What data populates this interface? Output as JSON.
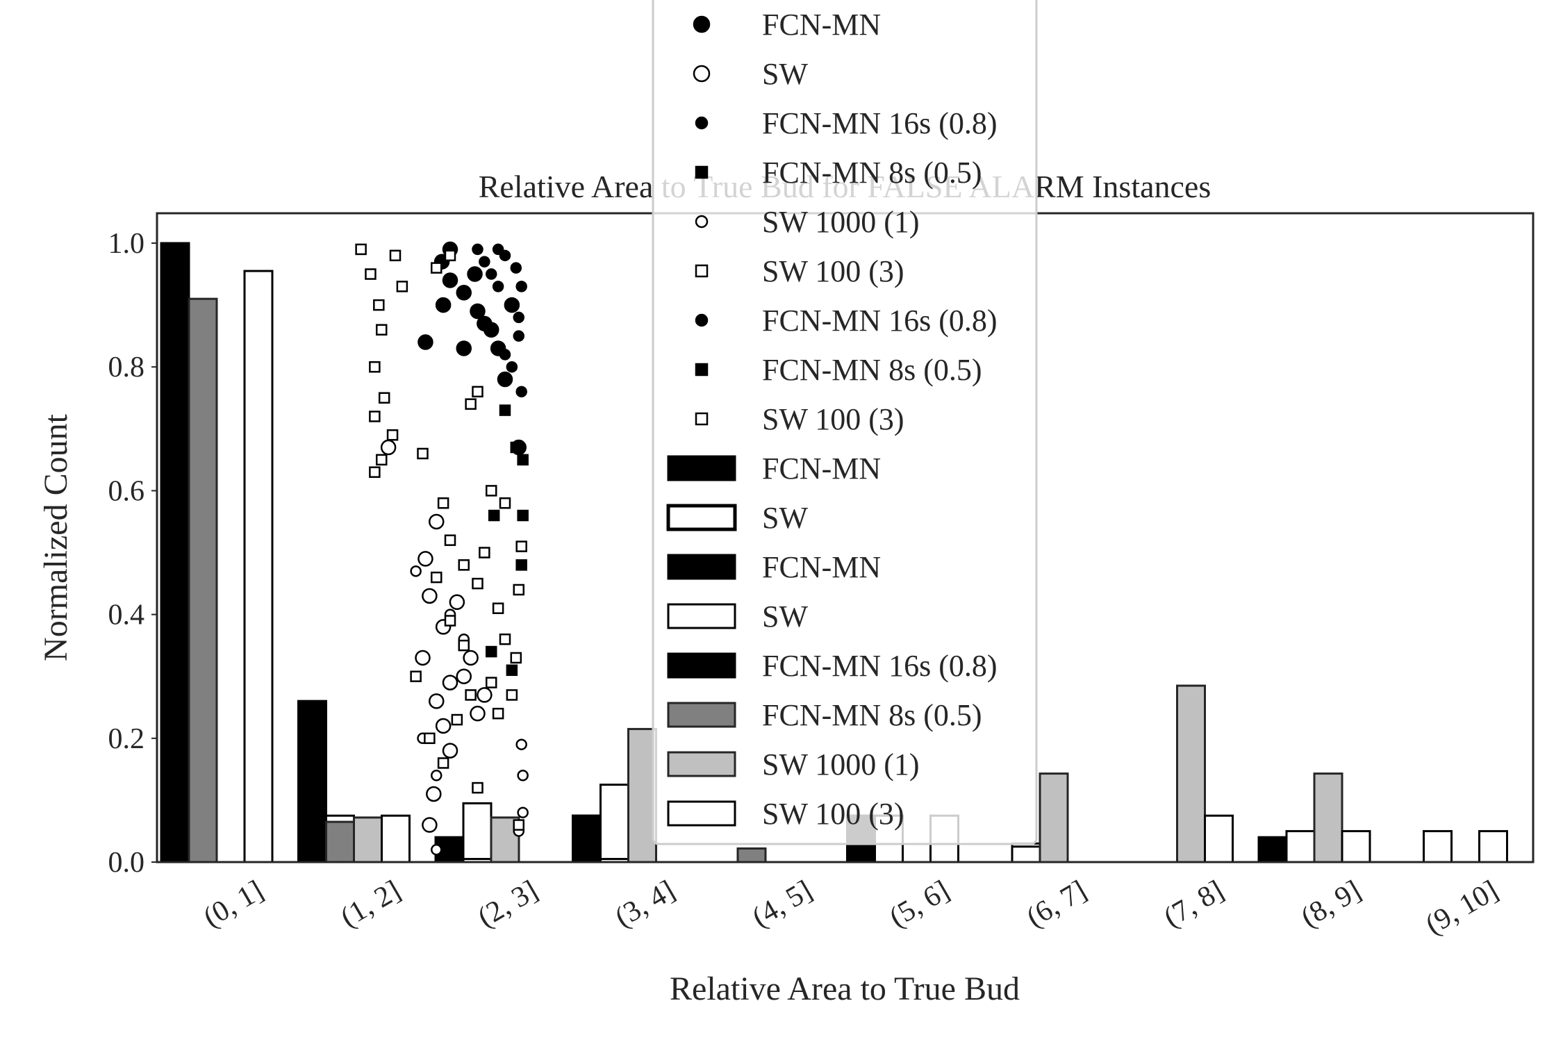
{
  "chart_data": {
    "type": "bar",
    "title": "Relative Area to True Bud for FALSE ALARM Instances",
    "xlabel": "Relative Area to True Bud",
    "ylabel": "Normalized Count",
    "ylim": [
      0,
      1.05
    ],
    "yticks": [
      "0.0",
      "0.2",
      "0.4",
      "0.6",
      "0.8",
      "1.0"
    ],
    "categories": [
      "(0, 1]",
      "(1, 2]",
      "(2, 3]",
      "(3, 4]",
      "(4, 5]",
      "(5, 6]",
      "(6, 7]",
      "(7, 8]",
      "(8, 9]",
      "(9, 10]"
    ],
    "grid": false,
    "legend_position": "top-center",
    "bar_series": [
      {
        "name": "FCN-MN",
        "fill": "#000000",
        "edge": "#000000",
        "values": [
          1.0,
          0.26,
          0.04,
          0.075,
          0.0,
          0.075,
          0.0,
          0.0,
          0.04,
          0.0
        ]
      },
      {
        "name": "SW",
        "fill": "#ffffff",
        "edge": "#000000",
        "values": [
          0.62,
          0.035,
          0.095,
          0.125,
          0.005,
          0.075,
          0.03,
          0.0,
          0.05,
          0.05
        ]
      },
      {
        "name": "FCN-MN",
        "fill": "#000000",
        "edge": "#000000",
        "values": [
          1.0,
          0.26,
          0.04,
          0.075,
          0.0,
          0.075,
          0.0,
          0.0,
          0.04,
          0.0
        ]
      },
      {
        "name": "SW",
        "fill": "#ffffff",
        "edge": "#000000",
        "values": [
          0.1,
          0.075,
          0.005,
          0.005,
          0.0,
          0.075,
          0.025,
          0.0,
          0.0,
          0.0
        ]
      },
      {
        "name": "FCN-MN 16s (0.8)",
        "fill": "#000000",
        "edge": "#000000",
        "values": [
          1.0,
          0.26,
          0.04,
          0.075,
          0.0,
          0.075,
          0.0,
          0.0,
          0.04,
          0.0
        ]
      },
      {
        "name": "FCN-MN 8s (0.5)",
        "fill": "#808080",
        "edge": "#262626",
        "values": [
          0.91,
          0.065,
          0.0,
          0.0,
          0.022,
          0.0,
          0.0,
          0.0,
          0.0,
          0.0
        ]
      },
      {
        "name": "SW 1000 (1)",
        "fill": "#c0c0c0",
        "edge": "#262626",
        "values": [
          0.0,
          0.072,
          0.072,
          0.215,
          0.0,
          0.0,
          0.143,
          0.285,
          0.143,
          0.0
        ]
      },
      {
        "name": "SW 100 (3)",
        "fill": "#ffffff",
        "edge": "#000000",
        "values": [
          0.955,
          0.075,
          0.0,
          0.0,
          0.0,
          0.075,
          0.0,
          0.075,
          0.05,
          0.05
        ]
      }
    ],
    "scatter_series": [
      {
        "name": "FCN-MN",
        "marker": "circle",
        "fill": "#000000",
        "size": "large",
        "points": [
          [
            2.04,
            0.97
          ],
          [
            2.1,
            0.94
          ],
          [
            2.2,
            0.92
          ],
          [
            2.3,
            0.89
          ],
          [
            2.35,
            0.87
          ],
          [
            2.45,
            0.83
          ],
          [
            1.92,
            0.84
          ],
          [
            2.05,
            0.9
          ],
          [
            2.5,
            0.78
          ],
          [
            2.28,
            0.95
          ],
          [
            2.4,
            0.86
          ],
          [
            2.2,
            0.83
          ],
          [
            2.55,
            0.9
          ],
          [
            2.1,
            0.99
          ],
          [
            2.6,
            0.67
          ]
        ]
      },
      {
        "name": "SW",
        "marker": "circle",
        "fill": "#ffffff",
        "size": "large",
        "points": [
          [
            2.0,
            0.55
          ],
          [
            1.95,
            0.43
          ],
          [
            2.05,
            0.38
          ],
          [
            2.1,
            0.29
          ],
          [
            2.0,
            0.26
          ],
          [
            2.2,
            0.3
          ],
          [
            2.25,
            0.33
          ],
          [
            1.9,
            0.33
          ],
          [
            2.3,
            0.24
          ],
          [
            1.98,
            0.11
          ],
          [
            2.05,
            0.22
          ],
          [
            2.15,
            0.42
          ],
          [
            1.65,
            0.67
          ],
          [
            1.95,
            0.06
          ],
          [
            2.1,
            0.18
          ],
          [
            2.35,
            0.27
          ],
          [
            1.92,
            0.49
          ]
        ]
      },
      {
        "name": "FCN-MN 16s (0.8)",
        "marker": "circle",
        "fill": "#000000",
        "size": "small",
        "points": [
          [
            2.3,
            0.99
          ],
          [
            2.35,
            0.97
          ],
          [
            2.4,
            0.95
          ],
          [
            2.45,
            0.93
          ],
          [
            2.5,
            0.98
          ],
          [
            2.55,
            0.9
          ],
          [
            2.6,
            0.85
          ],
          [
            2.55,
            0.8
          ],
          [
            2.62,
            0.76
          ],
          [
            2.58,
            0.96
          ],
          [
            2.6,
            0.88
          ],
          [
            2.5,
            0.82
          ],
          [
            2.45,
            0.99
          ],
          [
            2.62,
            0.93
          ]
        ]
      },
      {
        "name": "FCN-MN 8s (0.5)",
        "marker": "square",
        "fill": "#000000",
        "size": "small",
        "points": [
          [
            2.5,
            0.73
          ],
          [
            2.58,
            0.67
          ],
          [
            2.63,
            0.65
          ],
          [
            2.63,
            0.56
          ],
          [
            2.42,
            0.56
          ],
          [
            2.62,
            0.48
          ],
          [
            2.55,
            0.31
          ],
          [
            2.4,
            0.34
          ]
        ]
      },
      {
        "name": "SW 1000 (1)",
        "marker": "circle",
        "fill": "#ffffff",
        "size": "small",
        "points": [
          [
            1.85,
            0.47
          ],
          [
            1.9,
            0.2
          ],
          [
            2.0,
            0.02
          ],
          [
            2.0,
            0.14
          ],
          [
            2.1,
            0.4
          ],
          [
            2.2,
            0.36
          ],
          [
            2.3,
            0.12
          ],
          [
            2.63,
            0.14
          ],
          [
            2.63,
            0.08
          ],
          [
            2.62,
            0.19
          ],
          [
            2.6,
            0.05
          ]
        ]
      },
      {
        "name": "SW 100 (3)",
        "marker": "square",
        "fill": "#ffffff",
        "size": "small",
        "points": [
          [
            1.52,
            0.95
          ],
          [
            1.58,
            0.9
          ],
          [
            1.6,
            0.86
          ],
          [
            1.55,
            0.8
          ],
          [
            1.62,
            0.75
          ],
          [
            1.55,
            0.72
          ],
          [
            1.68,
            0.69
          ],
          [
            1.6,
            0.65
          ],
          [
            1.55,
            0.63
          ],
          [
            1.7,
            0.98
          ],
          [
            1.45,
            0.99
          ],
          [
            1.9,
            0.66
          ],
          [
            2.05,
            0.58
          ],
          [
            2.1,
            0.52
          ],
          [
            2.0,
            0.46
          ],
          [
            2.2,
            0.48
          ],
          [
            2.3,
            0.45
          ],
          [
            2.5,
            0.58
          ],
          [
            2.4,
            0.6
          ],
          [
            2.25,
            0.74
          ],
          [
            2.3,
            0.76
          ],
          [
            2.45,
            0.41
          ],
          [
            2.5,
            0.36
          ],
          [
            2.6,
            0.44
          ],
          [
            2.55,
            0.27
          ],
          [
            2.1,
            0.39
          ],
          [
            2.2,
            0.35
          ],
          [
            2.4,
            0.29
          ],
          [
            1.95,
            0.2
          ],
          [
            2.05,
            0.16
          ],
          [
            2.15,
            0.23
          ],
          [
            2.3,
            0.12
          ],
          [
            2.58,
            0.33
          ],
          [
            2.35,
            0.5
          ],
          [
            2.62,
            0.51
          ],
          [
            1.85,
            0.3
          ],
          [
            2.25,
            0.27
          ],
          [
            2.45,
            0.24
          ],
          [
            2.6,
            0.06
          ],
          [
            1.75,
            0.93
          ],
          [
            2.0,
            0.96
          ],
          [
            2.1,
            0.98
          ]
        ]
      },
      {
        "name": "FCN-MN 16s (0.8)",
        "marker": "circle",
        "fill": "#000000",
        "size": "small",
        "points": []
      },
      {
        "name": "FCN-MN 8s (0.5)",
        "marker": "square",
        "fill": "#000000",
        "size": "small",
        "points": []
      },
      {
        "name": "SW 100 (3)",
        "marker": "square",
        "fill": "#ffffff",
        "size": "small",
        "points": []
      }
    ],
    "legend": [
      {
        "label": "FCN-MN",
        "kind": "marker",
        "marker": "circle",
        "fill": "#000000",
        "size": "large"
      },
      {
        "label": "SW",
        "kind": "marker",
        "marker": "circle",
        "fill": "#ffffff",
        "size": "large"
      },
      {
        "label": "FCN-MN 16s (0.8)",
        "kind": "marker",
        "marker": "circle",
        "fill": "#000000",
        "size": "small"
      },
      {
        "label": "FCN-MN 8s (0.5)",
        "kind": "marker",
        "marker": "square",
        "fill": "#000000",
        "size": "small"
      },
      {
        "label": "SW 1000 (1)",
        "kind": "marker",
        "marker": "circle",
        "fill": "#ffffff",
        "size": "small"
      },
      {
        "label": "SW 100 (3)",
        "kind": "marker",
        "marker": "square",
        "fill": "#ffffff",
        "size": "small"
      },
      {
        "label": "FCN-MN 16s (0.8)",
        "kind": "marker",
        "marker": "circle",
        "fill": "#000000",
        "size": "small"
      },
      {
        "label": "FCN-MN 8s (0.5)",
        "kind": "marker",
        "marker": "square",
        "fill": "#000000",
        "size": "small"
      },
      {
        "label": "SW 100 (3)",
        "kind": "marker",
        "marker": "square",
        "fill": "#ffffff",
        "size": "small"
      },
      {
        "label": "FCN-MN",
        "kind": "patch",
        "fill": "#000000",
        "edge": "#000000"
      },
      {
        "label": "SW",
        "kind": "patch",
        "fill": "#ffffff",
        "edge": "#000000",
        "heavy": true
      },
      {
        "label": "FCN-MN",
        "kind": "patch",
        "fill": "#000000",
        "edge": "#000000"
      },
      {
        "label": "SW",
        "kind": "patch",
        "fill": "#ffffff",
        "edge": "#000000"
      },
      {
        "label": "FCN-MN 16s (0.8)",
        "kind": "patch",
        "fill": "#000000",
        "edge": "#000000"
      },
      {
        "label": "FCN-MN 8s (0.5)",
        "kind": "patch",
        "fill": "#808080",
        "edge": "#262626"
      },
      {
        "label": "SW 1000 (1)",
        "kind": "patch",
        "fill": "#c0c0c0",
        "edge": "#262626"
      },
      {
        "label": "SW 100 (3)",
        "kind": "patch",
        "fill": "#ffffff",
        "edge": "#000000"
      }
    ]
  }
}
